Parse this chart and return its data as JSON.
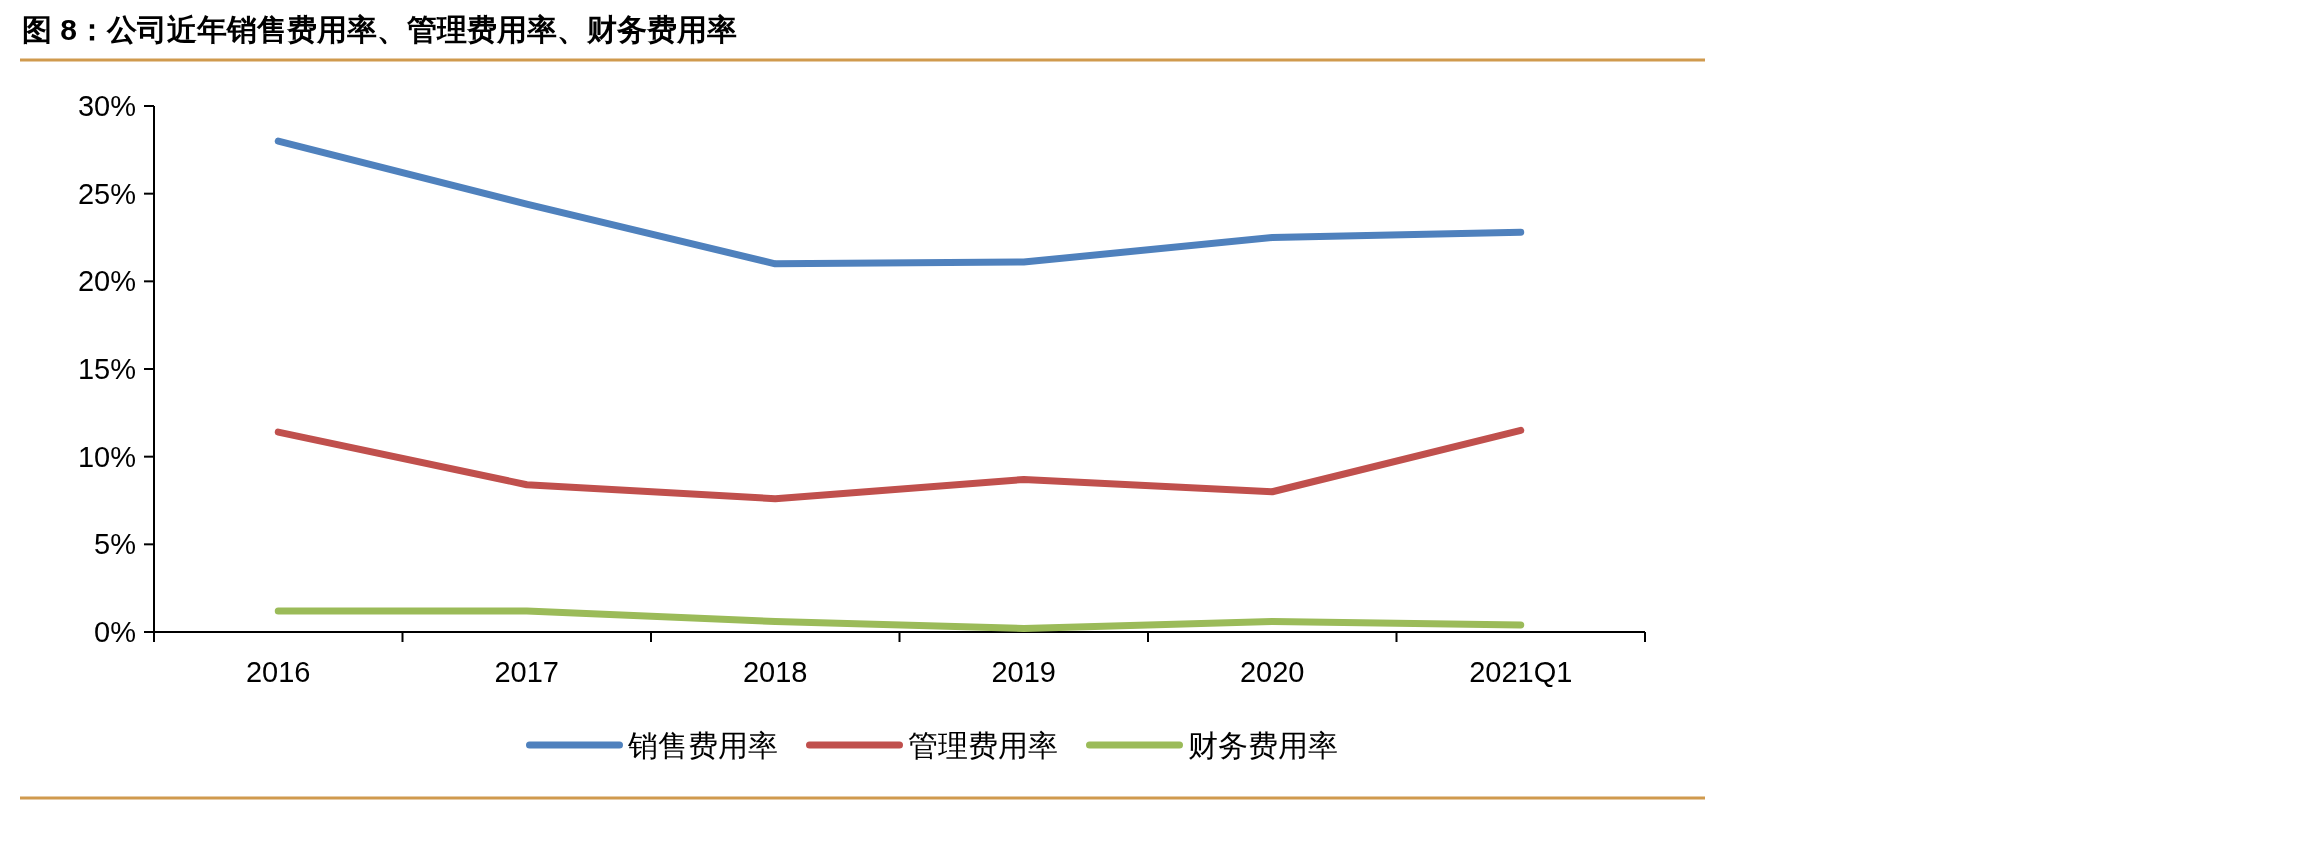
{
  "chart_data": {
    "type": "line",
    "title": "图 8：公司近年销售费用率、管理费用率、财务费用率",
    "categories": [
      "2016",
      "2017",
      "2018",
      "2019",
      "2020",
      "2021Q1"
    ],
    "series": [
      {
        "name": "销售费用率",
        "color": "#4f81bd",
        "values": [
          28.0,
          24.4,
          21.0,
          21.1,
          22.5,
          22.8
        ]
      },
      {
        "name": "管理费用率",
        "color": "#c0504d",
        "values": [
          11.4,
          8.4,
          7.6,
          8.7,
          8.0,
          11.5
        ]
      },
      {
        "name": "财务费用率",
        "color": "#9bbb59",
        "values": [
          1.2,
          1.2,
          0.6,
          0.2,
          0.6,
          0.4
        ]
      }
    ],
    "ylim": [
      0,
      30
    ],
    "yticks": [
      {
        "value": 0,
        "label": "0%"
      },
      {
        "value": 5,
        "label": "5%"
      },
      {
        "value": 10,
        "label": "10%"
      },
      {
        "value": 15,
        "label": "15%"
      },
      {
        "value": 20,
        "label": "20%"
      },
      {
        "value": 25,
        "label": "25%"
      },
      {
        "value": 30,
        "label": "30%"
      }
    ],
    "legend": "bottom",
    "marker": "none",
    "line_style": "solid",
    "grid": false
  }
}
